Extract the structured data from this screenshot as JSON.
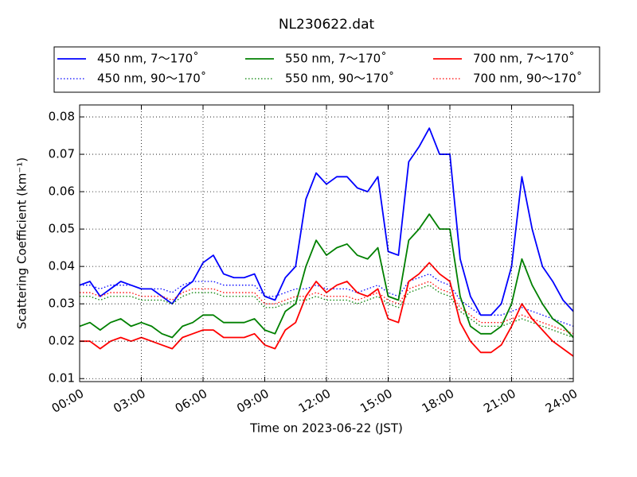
{
  "chart_data": {
    "type": "line",
    "title": "NL230622.dat",
    "x_label": "Time on 2023-06-22 (JST)",
    "y_label": "Scattering Coefficient (km⁻¹)",
    "xlim": [
      0,
      24
    ],
    "ylim": [
      0.0092,
      0.0832
    ],
    "xticks": [
      {
        "value": 0,
        "label": "00:00"
      },
      {
        "value": 3,
        "label": "03:00"
      },
      {
        "value": 6,
        "label": "06:00"
      },
      {
        "value": 9,
        "label": "09:00"
      },
      {
        "value": 12,
        "label": "12:00"
      },
      {
        "value": 15,
        "label": "15:00"
      },
      {
        "value": 18,
        "label": "18:00"
      },
      {
        "value": 21,
        "label": "21:00"
      },
      {
        "value": 24,
        "label": "24:00"
      }
    ],
    "yticks": [
      0.01,
      0.02,
      0.03,
      0.04,
      0.05,
      0.06,
      0.07,
      0.08
    ],
    "grid": true,
    "x": [
      0,
      0.5,
      1,
      1.5,
      2,
      2.5,
      3,
      3.5,
      4,
      4.5,
      5,
      5.5,
      6,
      6.5,
      7,
      7.5,
      8,
      8.5,
      9,
      9.5,
      10,
      10.5,
      11,
      11.5,
      12,
      12.5,
      13,
      13.5,
      14,
      14.5,
      15,
      15.5,
      16,
      16.5,
      17,
      17.5,
      18,
      18.5,
      19,
      19.5,
      20,
      20.5,
      21,
      21.5,
      22,
      22.5,
      23,
      23.5,
      24
    ],
    "series": [
      {
        "name": "450 nm, 7～170˚",
        "color": "#0000ff",
        "linestyle": "solid",
        "values": [
          0.035,
          0.036,
          0.032,
          0.034,
          0.036,
          0.035,
          0.034,
          0.034,
          0.032,
          0.03,
          0.034,
          0.036,
          0.041,
          0.043,
          0.038,
          0.037,
          0.037,
          0.038,
          0.032,
          0.031,
          0.037,
          0.04,
          0.058,
          0.065,
          0.062,
          0.064,
          0.064,
          0.061,
          0.06,
          0.064,
          0.044,
          0.043,
          0.068,
          0.072,
          0.077,
          0.07,
          0.07,
          0.042,
          0.032,
          0.027,
          0.027,
          0.03,
          0.04,
          0.064,
          0.05,
          0.04,
          0.036,
          0.031,
          0.028
        ]
      },
      {
        "name": "450 nm, 90～170˚",
        "color": "#0000ff",
        "linestyle": "dotted",
        "values": [
          0.035,
          0.035,
          0.034,
          0.035,
          0.035,
          0.035,
          0.034,
          0.034,
          0.034,
          0.033,
          0.035,
          0.036,
          0.036,
          0.036,
          0.035,
          0.035,
          0.035,
          0.035,
          0.032,
          0.032,
          0.033,
          0.034,
          0.034,
          0.035,
          0.034,
          0.034,
          0.034,
          0.033,
          0.034,
          0.035,
          0.033,
          0.032,
          0.036,
          0.037,
          0.038,
          0.036,
          0.035,
          0.031,
          0.029,
          0.027,
          0.027,
          0.027,
          0.028,
          0.029,
          0.028,
          0.027,
          0.026,
          0.025,
          0.024
        ]
      },
      {
        "name": "550 nm, 7～170˚",
        "color": "#008000",
        "linestyle": "solid",
        "values": [
          0.024,
          0.025,
          0.023,
          0.025,
          0.026,
          0.024,
          0.025,
          0.024,
          0.022,
          0.021,
          0.024,
          0.025,
          0.027,
          0.027,
          0.025,
          0.025,
          0.025,
          0.026,
          0.023,
          0.022,
          0.028,
          0.03,
          0.04,
          0.047,
          0.043,
          0.045,
          0.046,
          0.043,
          0.042,
          0.045,
          0.032,
          0.031,
          0.047,
          0.05,
          0.054,
          0.05,
          0.05,
          0.032,
          0.024,
          0.022,
          0.022,
          0.024,
          0.03,
          0.042,
          0.035,
          0.03,
          0.026,
          0.024,
          0.021
        ]
      },
      {
        "name": "550 nm, 90～170˚",
        "color": "#008000",
        "linestyle": "dotted",
        "values": [
          0.032,
          0.032,
          0.031,
          0.032,
          0.032,
          0.032,
          0.031,
          0.031,
          0.031,
          0.03,
          0.032,
          0.033,
          0.033,
          0.033,
          0.032,
          0.032,
          0.032,
          0.032,
          0.029,
          0.029,
          0.03,
          0.031,
          0.031,
          0.032,
          0.031,
          0.031,
          0.031,
          0.03,
          0.031,
          0.032,
          0.03,
          0.029,
          0.033,
          0.034,
          0.035,
          0.033,
          0.032,
          0.028,
          0.026,
          0.024,
          0.024,
          0.024,
          0.025,
          0.026,
          0.025,
          0.024,
          0.023,
          0.022,
          0.021
        ]
      },
      {
        "name": "700 nm, 7～170˚",
        "color": "#ff0000",
        "linestyle": "solid",
        "values": [
          0.02,
          0.02,
          0.018,
          0.02,
          0.021,
          0.02,
          0.021,
          0.02,
          0.019,
          0.018,
          0.021,
          0.022,
          0.023,
          0.023,
          0.021,
          0.021,
          0.021,
          0.022,
          0.019,
          0.018,
          0.023,
          0.025,
          0.032,
          0.036,
          0.033,
          0.035,
          0.036,
          0.033,
          0.032,
          0.034,
          0.026,
          0.025,
          0.036,
          0.038,
          0.041,
          0.038,
          0.036,
          0.025,
          0.02,
          0.017,
          0.017,
          0.019,
          0.024,
          0.03,
          0.026,
          0.023,
          0.02,
          0.018,
          0.016
        ]
      },
      {
        "name": "700 nm, 90～170˚",
        "color": "#ff0000",
        "linestyle": "dotted",
        "values": [
          0.033,
          0.033,
          0.032,
          0.033,
          0.033,
          0.033,
          0.032,
          0.032,
          0.032,
          0.031,
          0.033,
          0.034,
          0.034,
          0.034,
          0.033,
          0.033,
          0.033,
          0.033,
          0.03,
          0.03,
          0.031,
          0.032,
          0.032,
          0.033,
          0.032,
          0.032,
          0.032,
          0.031,
          0.032,
          0.033,
          0.031,
          0.03,
          0.034,
          0.035,
          0.036,
          0.034,
          0.033,
          0.029,
          0.027,
          0.025,
          0.025,
          0.025,
          0.026,
          0.027,
          0.026,
          0.025,
          0.024,
          0.023,
          0.022
        ]
      }
    ]
  }
}
